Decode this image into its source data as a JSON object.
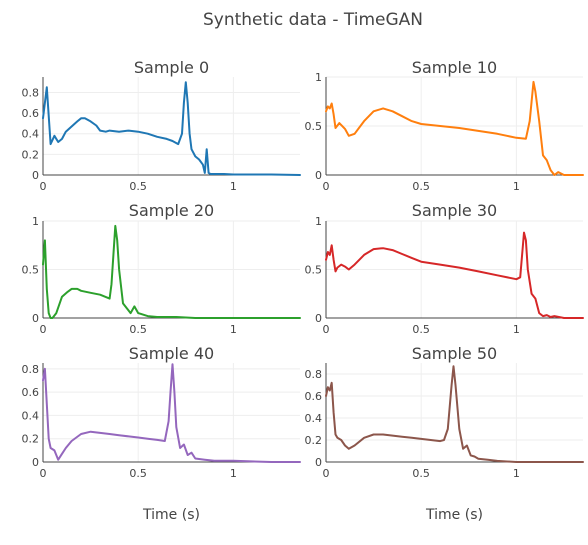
{
  "figure": {
    "title": "Synthetic data - TimeGAN"
  },
  "chart_data": [
    {
      "type": "line",
      "title": "Sample 0",
      "color": "#1f77b4",
      "xlim": [
        0,
        1.35
      ],
      "ylim": [
        0,
        0.95
      ],
      "xticks": [
        0,
        0.5,
        1
      ],
      "yticks": [
        0,
        0.2,
        0.4,
        0.6,
        0.8
      ],
      "xlabel": "",
      "series": [
        {
          "x": [
            0,
            0.02,
            0.04,
            0.06,
            0.08,
            0.1,
            0.12,
            0.15,
            0.18,
            0.2,
            0.22,
            0.25,
            0.28,
            0.3,
            0.33,
            0.35,
            0.4,
            0.45,
            0.5,
            0.55,
            0.6,
            0.65,
            0.68,
            0.71,
            0.73,
            0.74,
            0.75,
            0.76,
            0.77,
            0.78,
            0.8,
            0.82,
            0.84,
            0.85,
            0.86,
            0.87,
            0.88,
            0.9,
            0.95,
            1.0,
            1.1,
            1.2,
            1.35
          ],
          "y": [
            0.55,
            0.85,
            0.3,
            0.38,
            0.32,
            0.35,
            0.42,
            0.47,
            0.52,
            0.55,
            0.55,
            0.52,
            0.48,
            0.43,
            0.42,
            0.43,
            0.42,
            0.43,
            0.42,
            0.4,
            0.37,
            0.35,
            0.33,
            0.3,
            0.4,
            0.7,
            0.9,
            0.7,
            0.4,
            0.25,
            0.18,
            0.15,
            0.1,
            0.02,
            0.25,
            0.02,
            0.01,
            0.01,
            0.01,
            0.005,
            0.005,
            0.005,
            0.0
          ]
        }
      ]
    },
    {
      "type": "line",
      "title": "Sample 10",
      "color": "#ff7f0e",
      "xlim": [
        0,
        1.35
      ],
      "ylim": [
        0,
        1.0
      ],
      "xticks": [
        0,
        0.5,
        1
      ],
      "yticks": [
        0,
        0.5,
        1
      ],
      "xlabel": "",
      "series": [
        {
          "x": [
            0,
            0.01,
            0.02,
            0.03,
            0.04,
            0.05,
            0.07,
            0.1,
            0.12,
            0.15,
            0.2,
            0.25,
            0.3,
            0.35,
            0.4,
            0.45,
            0.5,
            0.6,
            0.7,
            0.8,
            0.9,
            1.0,
            1.05,
            1.07,
            1.08,
            1.09,
            1.1,
            1.12,
            1.14,
            1.16,
            1.18,
            1.2,
            1.22,
            1.25,
            1.3,
            1.35
          ],
          "y": [
            0.65,
            0.7,
            0.68,
            0.73,
            0.62,
            0.48,
            0.53,
            0.47,
            0.4,
            0.42,
            0.55,
            0.65,
            0.68,
            0.65,
            0.6,
            0.55,
            0.52,
            0.5,
            0.48,
            0.45,
            0.42,
            0.38,
            0.37,
            0.55,
            0.75,
            0.95,
            0.85,
            0.55,
            0.2,
            0.15,
            0.05,
            0.0,
            0.03,
            0.0,
            0.0,
            0.0
          ]
        }
      ]
    },
    {
      "type": "line",
      "title": "Sample 20",
      "color": "#2ca02c",
      "xlim": [
        0,
        1.35
      ],
      "ylim": [
        0,
        1.0
      ],
      "xticks": [
        0,
        0.5,
        1
      ],
      "yticks": [
        0,
        0.5,
        1
      ],
      "xlabel": "",
      "series": [
        {
          "x": [
            0,
            0.01,
            0.02,
            0.03,
            0.04,
            0.05,
            0.07,
            0.1,
            0.13,
            0.15,
            0.18,
            0.2,
            0.25,
            0.3,
            0.35,
            0.36,
            0.37,
            0.38,
            0.39,
            0.4,
            0.42,
            0.44,
            0.46,
            0.48,
            0.5,
            0.55,
            0.6,
            0.7,
            0.8,
            1.0,
            1.2,
            1.35
          ],
          "y": [
            0.55,
            0.8,
            0.3,
            0.05,
            0.0,
            0.0,
            0.05,
            0.22,
            0.27,
            0.3,
            0.3,
            0.28,
            0.26,
            0.24,
            0.2,
            0.35,
            0.65,
            0.95,
            0.8,
            0.5,
            0.15,
            0.1,
            0.05,
            0.12,
            0.05,
            0.02,
            0.01,
            0.01,
            0.0,
            0.0,
            0.0,
            0.0
          ]
        }
      ]
    },
    {
      "type": "line",
      "title": "Sample 30",
      "color": "#d62728",
      "xlim": [
        0,
        1.35
      ],
      "ylim": [
        0,
        1.0
      ],
      "xticks": [
        0,
        0.5,
        1
      ],
      "yticks": [
        0,
        0.5,
        1
      ],
      "xlabel": "",
      "series": [
        {
          "x": [
            0,
            0.01,
            0.02,
            0.03,
            0.04,
            0.05,
            0.06,
            0.08,
            0.1,
            0.12,
            0.15,
            0.2,
            0.25,
            0.3,
            0.35,
            0.4,
            0.45,
            0.5,
            0.6,
            0.7,
            0.8,
            0.9,
            1.0,
            1.02,
            1.03,
            1.04,
            1.05,
            1.06,
            1.08,
            1.1,
            1.12,
            1.14,
            1.16,
            1.18,
            1.2,
            1.25,
            1.3,
            1.35
          ],
          "y": [
            0.6,
            0.68,
            0.65,
            0.75,
            0.6,
            0.48,
            0.52,
            0.55,
            0.53,
            0.5,
            0.55,
            0.65,
            0.71,
            0.72,
            0.7,
            0.66,
            0.62,
            0.58,
            0.55,
            0.52,
            0.48,
            0.44,
            0.4,
            0.42,
            0.65,
            0.88,
            0.8,
            0.5,
            0.25,
            0.2,
            0.05,
            0.02,
            0.03,
            0.01,
            0.02,
            0.0,
            0.0,
            0.0
          ]
        }
      ]
    },
    {
      "type": "line",
      "title": "Sample 40",
      "color": "#9467bd",
      "xlim": [
        0,
        1.35
      ],
      "ylim": [
        0,
        0.85
      ],
      "xticks": [
        0,
        0.5,
        1
      ],
      "yticks": [
        0,
        0.2,
        0.4,
        0.6,
        0.8
      ],
      "xlabel": "Time (s)",
      "series": [
        {
          "x": [
            0,
            0.01,
            0.02,
            0.03,
            0.04,
            0.06,
            0.08,
            0.1,
            0.12,
            0.15,
            0.2,
            0.25,
            0.3,
            0.35,
            0.4,
            0.45,
            0.5,
            0.55,
            0.6,
            0.64,
            0.66,
            0.67,
            0.68,
            0.69,
            0.7,
            0.72,
            0.74,
            0.76,
            0.78,
            0.8,
            0.85,
            0.9,
            1.0,
            1.2,
            1.35
          ],
          "y": [
            0.7,
            0.8,
            0.5,
            0.2,
            0.12,
            0.1,
            0.02,
            0.07,
            0.12,
            0.18,
            0.24,
            0.26,
            0.25,
            0.24,
            0.23,
            0.22,
            0.21,
            0.2,
            0.19,
            0.18,
            0.35,
            0.6,
            0.84,
            0.6,
            0.3,
            0.12,
            0.15,
            0.06,
            0.08,
            0.03,
            0.02,
            0.01,
            0.01,
            0.0,
            0.0
          ]
        }
      ]
    },
    {
      "type": "line",
      "title": "Sample 50",
      "color": "#8c564b",
      "xlim": [
        0,
        1.35
      ],
      "ylim": [
        0,
        0.9
      ],
      "xticks": [
        0,
        0.5,
        1
      ],
      "yticks": [
        0,
        0.2,
        0.4,
        0.6,
        0.8
      ],
      "xlabel": "Time (s)",
      "series": [
        {
          "x": [
            0,
            0.01,
            0.02,
            0.03,
            0.04,
            0.05,
            0.06,
            0.08,
            0.1,
            0.12,
            0.15,
            0.2,
            0.25,
            0.3,
            0.35,
            0.4,
            0.45,
            0.5,
            0.55,
            0.6,
            0.62,
            0.64,
            0.65,
            0.66,
            0.67,
            0.68,
            0.7,
            0.72,
            0.74,
            0.76,
            0.78,
            0.8,
            0.85,
            0.9,
            1.0,
            1.2,
            1.35
          ],
          "y": [
            0.6,
            0.68,
            0.65,
            0.72,
            0.45,
            0.25,
            0.22,
            0.2,
            0.15,
            0.12,
            0.15,
            0.22,
            0.25,
            0.25,
            0.24,
            0.23,
            0.22,
            0.21,
            0.2,
            0.19,
            0.2,
            0.3,
            0.5,
            0.7,
            0.87,
            0.7,
            0.3,
            0.12,
            0.15,
            0.06,
            0.05,
            0.03,
            0.02,
            0.01,
            0.0,
            0.0,
            0.0
          ]
        }
      ]
    }
  ]
}
